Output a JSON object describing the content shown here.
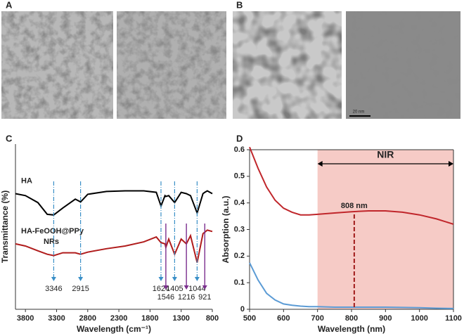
{
  "panels": [
    "A",
    "B",
    "C",
    "D"
  ],
  "scale_bar_label": "20 nm",
  "chart_data": [
    {
      "type": "line",
      "xlabel": "Wavelength (cm⁻¹)",
      "ylabel": "Transmittance (%)",
      "x": [
        3960,
        3800,
        3600,
        3450,
        3346,
        3200,
        3000,
        2915,
        2800,
        2500,
        2200,
        1900,
        1700,
        1624,
        1560,
        1546,
        1500,
        1405,
        1300,
        1216,
        1150,
        1044,
        950,
        921,
        880,
        800
      ],
      "xlim": [
        3960,
        800
      ],
      "xticks": [
        3800,
        3300,
        2800,
        2300,
        1800,
        1300,
        800
      ],
      "ylim": [
        0,
        100
      ],
      "series": [
        {
          "name": "HA",
          "color": "#000000",
          "values": [
            70,
            68.8,
            64.6,
            57.5,
            57.1,
            61.3,
            66.7,
            65,
            69.6,
            71.3,
            71.7,
            71.7,
            70.8,
            62.5,
            68.8,
            68.3,
            68.8,
            64.6,
            70.8,
            70,
            68.8,
            58.3,
            70,
            70.8,
            71.7,
            70
          ]
        },
        {
          "name": "HA-FeOOH@PPy NRs",
          "color": "#b01c1c",
          "values": [
            39.6,
            38.3,
            35.4,
            33.3,
            32.5,
            34.2,
            34.2,
            33.3,
            34.6,
            36.7,
            38.3,
            40.8,
            43.8,
            40.4,
            39.6,
            37.5,
            42.5,
            33.3,
            42.5,
            39.6,
            44.6,
            28.3,
            45.8,
            46.7,
            47.9,
            47.1
          ]
        }
      ],
      "peaks_blue": [
        3346,
        2915,
        1624,
        1405,
        1044
      ],
      "peaks_blue_color": "#3a8fc7",
      "peaks_purple": [
        1546,
        1216,
        921
      ],
      "peaks_purple_color": "#7b2f8e"
    },
    {
      "type": "line",
      "xlabel": "Wavelength (nm)",
      "ylabel": "Absorption (a.u.)",
      "x": [
        500,
        525,
        550,
        575,
        600,
        625,
        650,
        675,
        700,
        750,
        800,
        850,
        900,
        950,
        1000,
        1050,
        1100
      ],
      "xlim": [
        500,
        1100
      ],
      "xticks": [
        500,
        600,
        700,
        800,
        900,
        1000,
        1100
      ],
      "ylim": [
        0,
        0.6
      ],
      "yticks": [
        0,
        0.1,
        0.2,
        0.3,
        0.4,
        0.5,
        0.6
      ],
      "series": [
        {
          "color": "#c0262b",
          "values": [
            0.61,
            0.53,
            0.46,
            0.41,
            0.38,
            0.365,
            0.355,
            0.355,
            0.357,
            0.362,
            0.367,
            0.37,
            0.37,
            0.365,
            0.355,
            0.34,
            0.32
          ]
        },
        {
          "color": "#5b9bd5",
          "values": [
            0.175,
            0.11,
            0.06,
            0.035,
            0.02,
            0.015,
            0.012,
            0.01,
            0.01,
            0.008,
            0.008,
            0.008,
            0.008,
            0.007,
            0.006,
            0.004,
            0.003
          ]
        }
      ],
      "band": {
        "range": [
          700,
          1100
        ],
        "label": "NIR",
        "color": "#f6cbc6"
      },
      "marker": {
        "value": 808,
        "label": "808 nm",
        "color": "#a01a1a"
      }
    }
  ]
}
